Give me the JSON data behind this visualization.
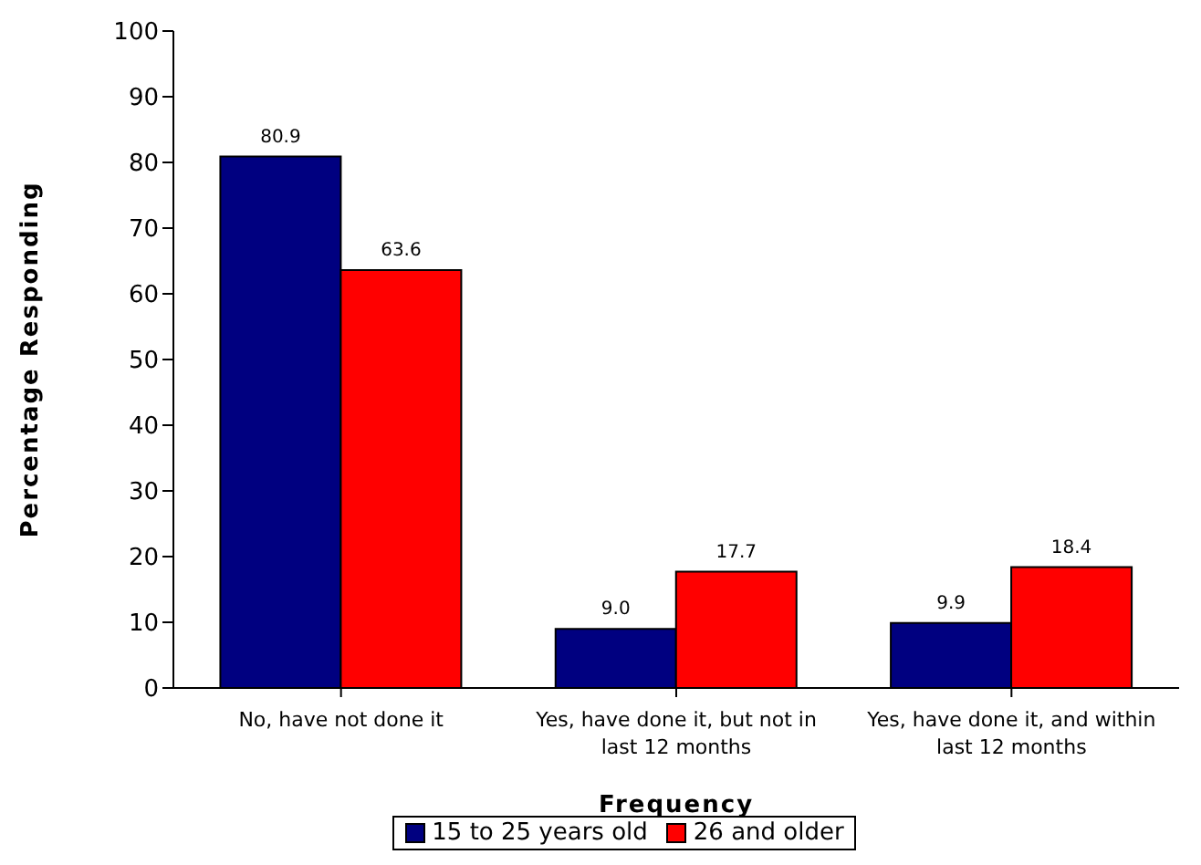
{
  "chart_data": {
    "type": "bar",
    "xlabel": "Frequency",
    "ylabel": "Percentage Responding",
    "categories": [
      "No, have not done it",
      "Yes, have done it, but not in last 12 months",
      "Yes, have done it, and within last 12 months"
    ],
    "series": [
      {
        "name": "15 to 25 years old",
        "color": "#000080",
        "values": [
          80.9,
          9.0,
          9.9
        ],
        "value_labels": [
          "80.9",
          "9.0",
          "9.9"
        ]
      },
      {
        "name": "26 and older",
        "color": "#ff0000",
        "values": [
          63.6,
          17.7,
          18.4
        ],
        "value_labels": [
          "63.6",
          "17.7",
          "18.4"
        ]
      }
    ],
    "ylim": [
      0,
      100
    ],
    "yticks": [
      0,
      10,
      20,
      30,
      40,
      50,
      60,
      70,
      80,
      90,
      100
    ],
    "grid": false,
    "legend": "bottom"
  }
}
